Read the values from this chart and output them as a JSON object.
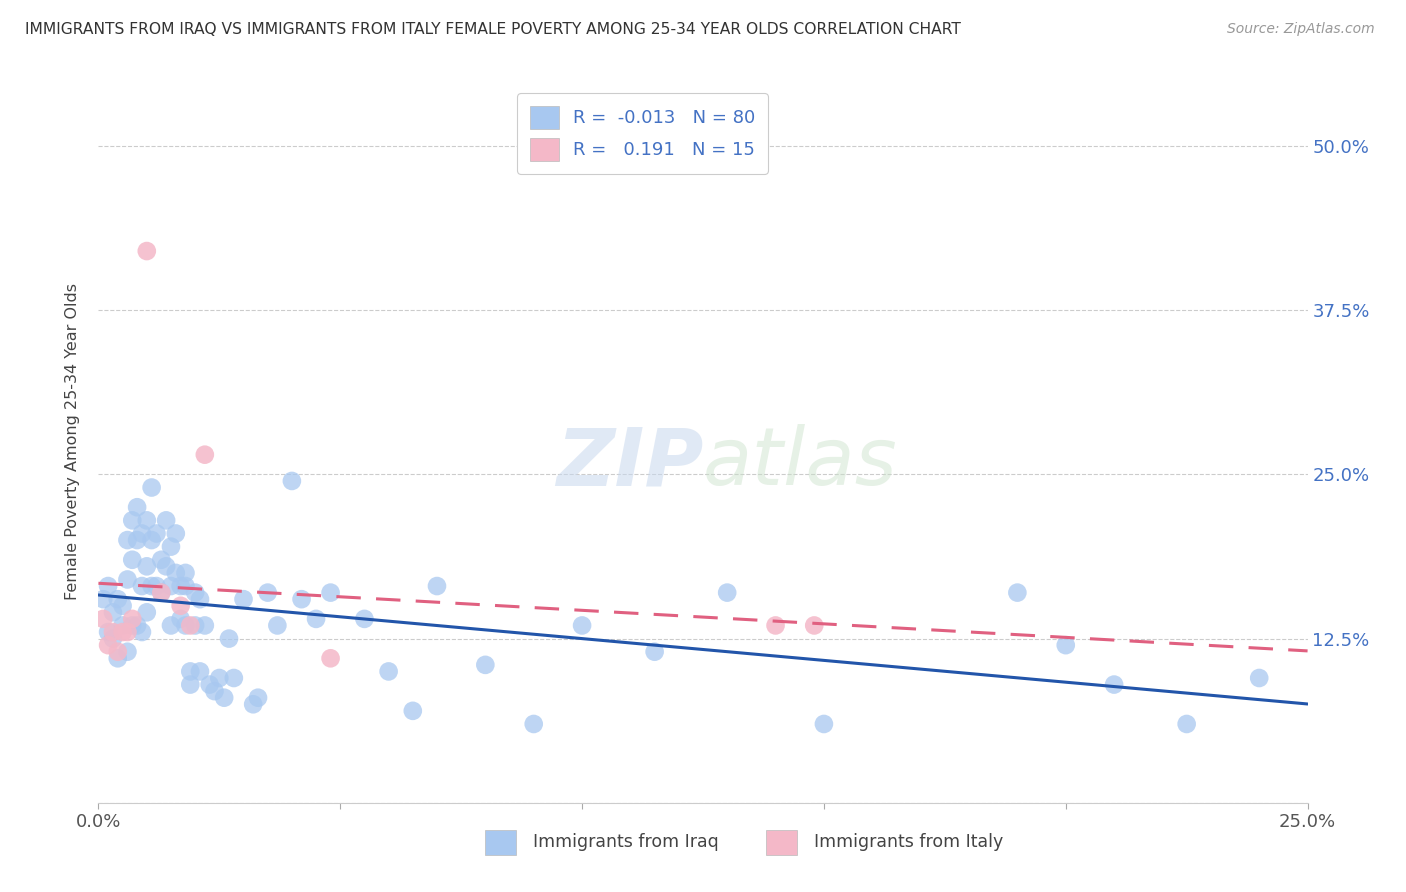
{
  "title": "IMMIGRANTS FROM IRAQ VS IMMIGRANTS FROM ITALY FEMALE POVERTY AMONG 25-34 YEAR OLDS CORRELATION CHART",
  "source": "Source: ZipAtlas.com",
  "ylabel": "Female Poverty Among 25-34 Year Olds",
  "xlabel_iraq": "Immigrants from Iraq",
  "xlabel_italy": "Immigrants from Italy",
  "xlim": [
    0.0,
    0.25
  ],
  "ylim": [
    0.0,
    0.55
  ],
  "yticks": [
    0.0,
    0.125,
    0.25,
    0.375,
    0.5
  ],
  "ytick_labels": [
    "",
    "12.5%",
    "25.0%",
    "37.5%",
    "50.0%"
  ],
  "xticks": [
    0.0,
    0.05,
    0.1,
    0.15,
    0.2,
    0.25
  ],
  "xtick_labels": [
    "0.0%",
    "",
    "",
    "",
    "",
    "25.0%"
  ],
  "R_iraq": -0.013,
  "N_iraq": 80,
  "R_italy": 0.191,
  "N_italy": 15,
  "color_iraq": "#a8c8f0",
  "color_italy": "#f4b8c8",
  "line_color_iraq": "#2255aa",
  "line_color_italy": "#e06080",
  "watermark_zip": "ZIP",
  "watermark_atlas": "atlas",
  "iraq_x": [
    0.001,
    0.002,
    0.002,
    0.003,
    0.003,
    0.004,
    0.004,
    0.005,
    0.005,
    0.006,
    0.006,
    0.006,
    0.007,
    0.007,
    0.007,
    0.008,
    0.008,
    0.008,
    0.009,
    0.009,
    0.009,
    0.01,
    0.01,
    0.01,
    0.011,
    0.011,
    0.011,
    0.012,
    0.012,
    0.013,
    0.013,
    0.014,
    0.014,
    0.015,
    0.015,
    0.015,
    0.016,
    0.016,
    0.017,
    0.017,
    0.018,
    0.018,
    0.018,
    0.019,
    0.019,
    0.02,
    0.02,
    0.021,
    0.021,
    0.022,
    0.023,
    0.024,
    0.025,
    0.026,
    0.027,
    0.028,
    0.03,
    0.032,
    0.033,
    0.035,
    0.037,
    0.04,
    0.042,
    0.045,
    0.048,
    0.055,
    0.06,
    0.065,
    0.07,
    0.08,
    0.09,
    0.1,
    0.115,
    0.13,
    0.15,
    0.19,
    0.2,
    0.21,
    0.225,
    0.24
  ],
  "iraq_y": [
    0.155,
    0.165,
    0.13,
    0.125,
    0.145,
    0.155,
    0.11,
    0.135,
    0.15,
    0.17,
    0.115,
    0.2,
    0.185,
    0.215,
    0.135,
    0.225,
    0.2,
    0.135,
    0.205,
    0.165,
    0.13,
    0.215,
    0.18,
    0.145,
    0.24,
    0.2,
    0.165,
    0.205,
    0.165,
    0.185,
    0.16,
    0.18,
    0.215,
    0.195,
    0.165,
    0.135,
    0.205,
    0.175,
    0.165,
    0.14,
    0.175,
    0.165,
    0.135,
    0.1,
    0.09,
    0.16,
    0.135,
    0.155,
    0.1,
    0.135,
    0.09,
    0.085,
    0.095,
    0.08,
    0.125,
    0.095,
    0.155,
    0.075,
    0.08,
    0.16,
    0.135,
    0.245,
    0.155,
    0.14,
    0.16,
    0.14,
    0.1,
    0.07,
    0.165,
    0.105,
    0.06,
    0.135,
    0.115,
    0.16,
    0.06,
    0.16,
    0.12,
    0.09,
    0.06,
    0.095
  ],
  "italy_x": [
    0.001,
    0.002,
    0.003,
    0.004,
    0.005,
    0.006,
    0.007,
    0.01,
    0.013,
    0.017,
    0.019,
    0.022,
    0.048,
    0.14,
    0.148
  ],
  "italy_y": [
    0.14,
    0.12,
    0.13,
    0.115,
    0.13,
    0.13,
    0.14,
    0.42,
    0.16,
    0.15,
    0.135,
    0.265,
    0.11,
    0.135,
    0.135
  ]
}
